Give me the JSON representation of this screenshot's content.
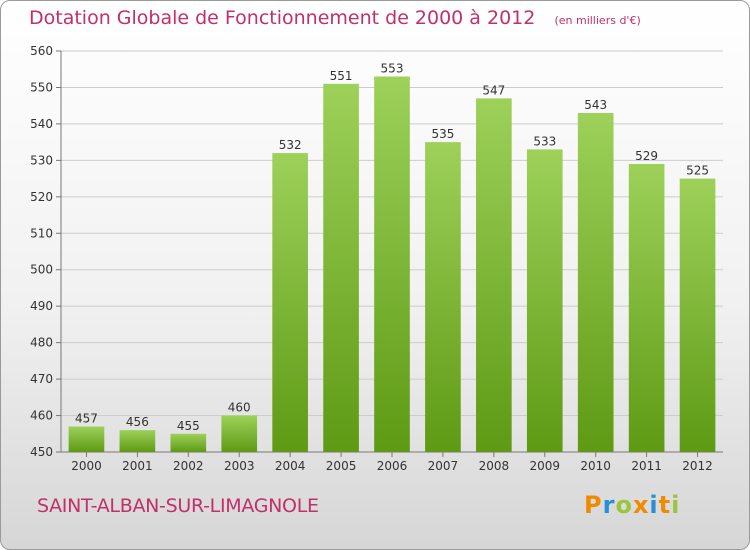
{
  "title": "Dotation Globale de Fonctionnement de 2000 à 2012",
  "unit_note": "(en milliers d'€)",
  "commune": "SAINT-ALBAN-SUR-LIMAGNOLE",
  "brand": "Proxiti",
  "colors": {
    "title": "#c0306a",
    "bar_light": "#9dd15a",
    "bar_dark": "#5e9a14",
    "grid": "#cccccc",
    "axis": "#777777",
    "label": "#333333",
    "brand_letters": [
      "#f08a00",
      "#2a8fd6",
      "#9ac53c",
      "#f08a00",
      "#2a8fd6",
      "#f08a00",
      "#9ac53c"
    ]
  },
  "chart_data": {
    "type": "bar",
    "categories": [
      "2000",
      "2001",
      "2002",
      "2003",
      "2004",
      "2005",
      "2006",
      "2007",
      "2008",
      "2009",
      "2010",
      "2011",
      "2012"
    ],
    "values": [
      457,
      456,
      455,
      460,
      532,
      551,
      553,
      535,
      547,
      533,
      543,
      529,
      525
    ],
    "ylim": [
      450,
      560
    ],
    "yticks": [
      450,
      460,
      470,
      480,
      490,
      500,
      510,
      520,
      530,
      540,
      550,
      560
    ],
    "grid": true,
    "xlabel": "",
    "ylabel": ""
  }
}
